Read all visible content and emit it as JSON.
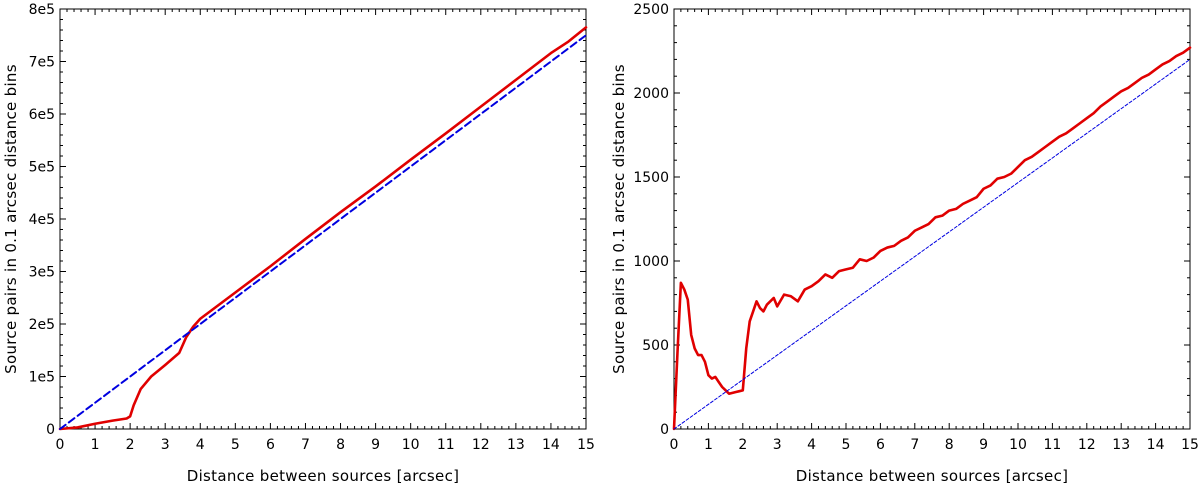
{
  "chart_data": [
    {
      "type": "line",
      "title": "",
      "xlabel": "Distance between sources [arcsec]",
      "ylabel": "Source pairs in 0.1 arcsec distance bins",
      "xlim": [
        0,
        15
      ],
      "ylim": [
        0,
        800000
      ],
      "grid": false,
      "xticks": [
        0,
        1,
        2,
        3,
        4,
        5,
        6,
        7,
        8,
        9,
        10,
        11,
        12,
        13,
        14,
        15
      ],
      "yticks": [
        0,
        100000,
        200000,
        300000,
        400000,
        500000,
        600000,
        700000,
        800000
      ],
      "ytick_labels": [
        "0",
        "1e5",
        "2e5",
        "3e5",
        "4e5",
        "5e5",
        "6e5",
        "7e5",
        "8e5"
      ],
      "series": [
        {
          "color": "#e00000",
          "style": "solid",
          "x": [
            0,
            0.5,
            1.0,
            1.5,
            1.9,
            2.0,
            2.1,
            2.3,
            2.6,
            3.0,
            3.4,
            3.6,
            3.8,
            4.0,
            4.5,
            5,
            6,
            7,
            8,
            9,
            10,
            11,
            12,
            13,
            14,
            14.5,
            15
          ],
          "y": [
            0,
            3000,
            10000,
            16000,
            20000,
            24000,
            45000,
            76000,
            100000,
            122000,
            145000,
            175000,
            195000,
            210000,
            235000,
            260000,
            310000,
            362000,
            413000,
            462000,
            513000,
            563000,
            614000,
            665000,
            716000,
            738000,
            765000
          ]
        },
        {
          "color": "#0000e0",
          "style": "dashed",
          "x": [
            0,
            15
          ],
          "y": [
            0,
            750000
          ]
        }
      ]
    },
    {
      "type": "line",
      "title": "",
      "xlabel": "Distance between sources [arcsec]",
      "ylabel": "Source pairs in 0.1 arcsec distance bins",
      "xlim": [
        0,
        15
      ],
      "ylim": [
        0,
        2500
      ],
      "grid": false,
      "xticks": [
        0,
        1,
        2,
        3,
        4,
        5,
        6,
        7,
        8,
        9,
        10,
        11,
        12,
        13,
        14,
        15
      ],
      "yticks": [
        0,
        500,
        1000,
        1500,
        2000,
        2500
      ],
      "ytick_labels": [
        "0",
        "500",
        "1000",
        "1500",
        "2000",
        "2500"
      ],
      "series": [
        {
          "color": "#e00000",
          "style": "solid",
          "x": [
            0,
            0.1,
            0.2,
            0.3,
            0.4,
            0.5,
            0.6,
            0.7,
            0.8,
            0.9,
            1.0,
            1.1,
            1.2,
            1.3,
            1.4,
            1.5,
            1.6,
            1.7,
            1.8,
            1.9,
            2.0,
            2.1,
            2.2,
            2.3,
            2.4,
            2.5,
            2.6,
            2.7,
            2.8,
            2.9,
            3.0,
            3.2,
            3.4,
            3.6,
            3.8,
            4.0,
            4.2,
            4.4,
            4.6,
            4.8,
            5.0,
            5.2,
            5.4,
            5.6,
            5.8,
            6.0,
            6.2,
            6.4,
            6.6,
            6.8,
            7.0,
            7.2,
            7.4,
            7.6,
            7.8,
            8.0,
            8.2,
            8.4,
            8.6,
            8.8,
            9.0,
            9.2,
            9.4,
            9.6,
            9.8,
            10.0,
            10.2,
            10.4,
            10.6,
            10.8,
            11.0,
            11.2,
            11.4,
            11.6,
            11.8,
            12.0,
            12.2,
            12.4,
            12.6,
            12.8,
            13.0,
            13.2,
            13.4,
            13.6,
            13.8,
            14.0,
            14.2,
            14.4,
            14.6,
            14.8,
            15.0
          ],
          "y": [
            0,
            450,
            870,
            830,
            770,
            560,
            480,
            440,
            440,
            400,
            320,
            300,
            310,
            280,
            250,
            230,
            210,
            215,
            220,
            225,
            230,
            480,
            640,
            700,
            760,
            720,
            700,
            740,
            760,
            780,
            730,
            800,
            790,
            760,
            830,
            850,
            880,
            920,
            900,
            940,
            950,
            960,
            1010,
            1000,
            1020,
            1060,
            1080,
            1090,
            1120,
            1140,
            1180,
            1200,
            1220,
            1260,
            1270,
            1300,
            1310,
            1340,
            1360,
            1380,
            1430,
            1450,
            1490,
            1500,
            1520,
            1560,
            1600,
            1620,
            1650,
            1680,
            1710,
            1740,
            1760,
            1790,
            1820,
            1850,
            1880,
            1920,
            1950,
            1980,
            2010,
            2030,
            2060,
            2090,
            2110,
            2140,
            2170,
            2190,
            2220,
            2240,
            2270
          ]
        },
        {
          "color": "#0000e0",
          "style": "dashed",
          "x": [
            0,
            15
          ],
          "y": [
            0,
            2200
          ]
        }
      ]
    }
  ]
}
